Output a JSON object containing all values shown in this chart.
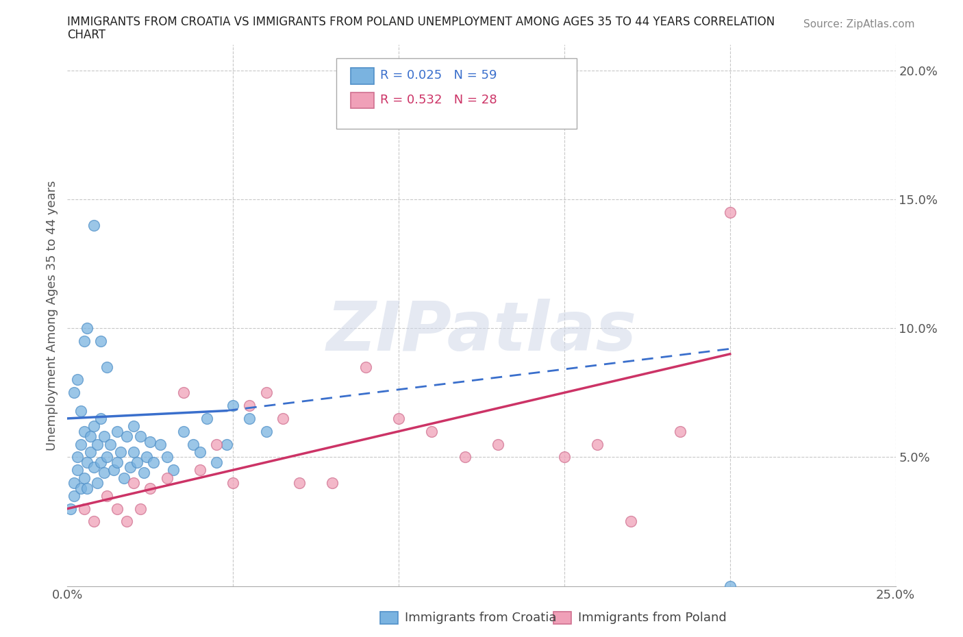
{
  "title_line1": "IMMIGRANTS FROM CROATIA VS IMMIGRANTS FROM POLAND UNEMPLOYMENT AMONG AGES 35 TO 44 YEARS CORRELATION",
  "title_line2": "CHART",
  "source_text": "Source: ZipAtlas.com",
  "ylabel": "Unemployment Among Ages 35 to 44 years",
  "xlim": [
    0.0,
    0.25
  ],
  "ylim": [
    0.0,
    0.21
  ],
  "xticks": [
    0.0,
    0.05,
    0.1,
    0.15,
    0.2,
    0.25
  ],
  "xticklabels": [
    "0.0%",
    "",
    "",
    "",
    "",
    "25.0%"
  ],
  "yticks": [
    0.0,
    0.05,
    0.1,
    0.15,
    0.2
  ],
  "yticklabels": [
    "",
    "5.0%",
    "10.0%",
    "15.0%",
    "20.0%"
  ],
  "croatia_R": 0.025,
  "croatia_N": 59,
  "poland_R": 0.532,
  "poland_N": 28,
  "croatia_color": "#7ab3e0",
  "croatia_edge_color": "#5090c8",
  "poland_color": "#f0a0b8",
  "poland_edge_color": "#d07090",
  "croatia_line_color": "#3a6fcc",
  "poland_line_color": "#cc3366",
  "background_color": "#ffffff",
  "grid_color": "#c8c8c8",
  "watermark": "ZIPatlas",
  "legend_label_croatia": "Immigrants from Croatia",
  "legend_label_poland": "Immigrants from Poland",
  "croatia_x": [
    0.001,
    0.002,
    0.002,
    0.003,
    0.003,
    0.004,
    0.004,
    0.005,
    0.005,
    0.006,
    0.006,
    0.007,
    0.007,
    0.008,
    0.008,
    0.009,
    0.009,
    0.01,
    0.01,
    0.011,
    0.011,
    0.012,
    0.013,
    0.014,
    0.015,
    0.015,
    0.016,
    0.017,
    0.018,
    0.019,
    0.02,
    0.02,
    0.021,
    0.022,
    0.023,
    0.024,
    0.025,
    0.026,
    0.028,
    0.03,
    0.032,
    0.035,
    0.038,
    0.04,
    0.042,
    0.045,
    0.048,
    0.05,
    0.055,
    0.06,
    0.002,
    0.003,
    0.004,
    0.005,
    0.006,
    0.008,
    0.01,
    0.012,
    0.2
  ],
  "croatia_y": [
    0.03,
    0.035,
    0.04,
    0.045,
    0.05,
    0.038,
    0.055,
    0.042,
    0.06,
    0.038,
    0.048,
    0.052,
    0.058,
    0.046,
    0.062,
    0.04,
    0.055,
    0.048,
    0.065,
    0.044,
    0.058,
    0.05,
    0.055,
    0.045,
    0.06,
    0.048,
    0.052,
    0.042,
    0.058,
    0.046,
    0.052,
    0.062,
    0.048,
    0.058,
    0.044,
    0.05,
    0.056,
    0.048,
    0.055,
    0.05,
    0.045,
    0.06,
    0.055,
    0.052,
    0.065,
    0.048,
    0.055,
    0.07,
    0.065,
    0.06,
    0.075,
    0.08,
    0.068,
    0.095,
    0.1,
    0.14,
    0.095,
    0.085,
    0.0
  ],
  "poland_x": [
    0.005,
    0.008,
    0.012,
    0.015,
    0.018,
    0.02,
    0.022,
    0.025,
    0.03,
    0.035,
    0.04,
    0.045,
    0.055,
    0.06,
    0.065,
    0.07,
    0.08,
    0.09,
    0.1,
    0.11,
    0.12,
    0.13,
    0.15,
    0.16,
    0.17,
    0.185,
    0.2,
    0.05
  ],
  "poland_y": [
    0.03,
    0.025,
    0.035,
    0.03,
    0.025,
    0.04,
    0.03,
    0.038,
    0.042,
    0.075,
    0.045,
    0.055,
    0.07,
    0.075,
    0.065,
    0.04,
    0.04,
    0.085,
    0.065,
    0.06,
    0.05,
    0.055,
    0.05,
    0.055,
    0.025,
    0.06,
    0.145,
    0.04
  ],
  "croatia_line_x_start": 0.0,
  "croatia_line_x_solid_end": 0.048,
  "croatia_line_x_dashed_end": 0.2,
  "croatia_line_y_start": 0.065,
  "croatia_line_y_solid_end": 0.068,
  "croatia_line_y_dashed_end": 0.092,
  "poland_line_x_start": 0.0,
  "poland_line_x_end": 0.2,
  "poland_line_y_start": 0.03,
  "poland_line_y_end": 0.09
}
